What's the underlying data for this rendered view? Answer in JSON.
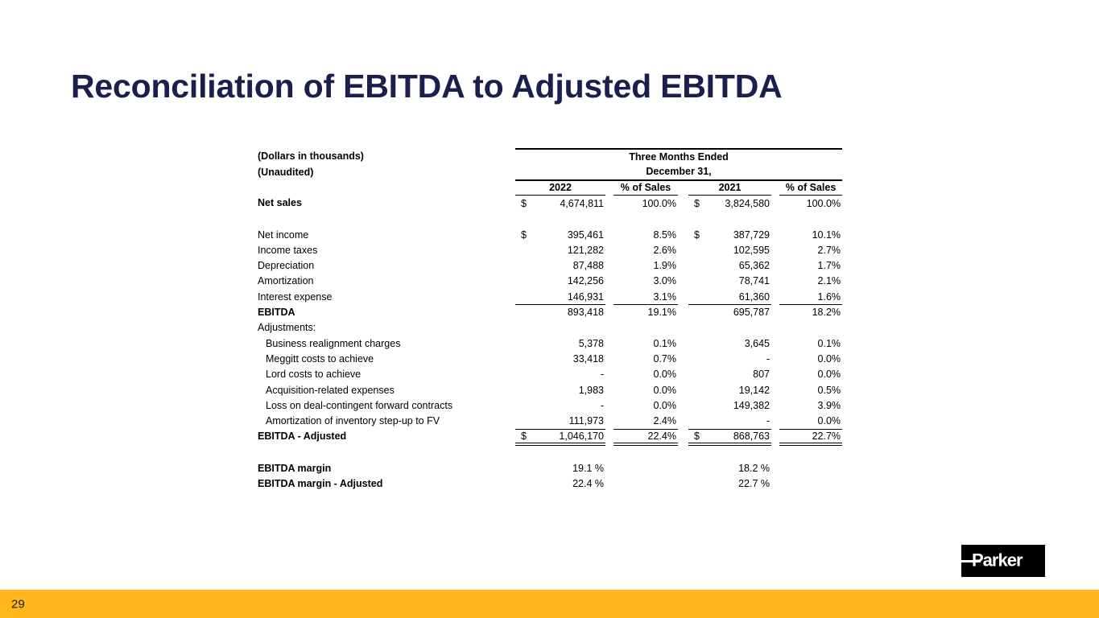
{
  "slide": {
    "title": "Reconciliation of EBITDA to Adjusted EBITDA"
  },
  "table": {
    "note_line1": "(Dollars in thousands)",
    "note_line2": "(Unaudited)",
    "period_line1": "Three Months Ended",
    "period_line2": "December 31,",
    "columns": [
      "2022",
      "% of Sales",
      "2021",
      "% of Sales"
    ],
    "rows": [
      {
        "label": "Net sales",
        "bold": true,
        "dollar": true,
        "v2022": "4,674,811",
        "pct2022": "100.0%",
        "v2021": "3,824,580",
        "pct2021": "100.0%"
      },
      {
        "label": "Net income",
        "dollar": true,
        "spacer_before": true,
        "v2022": "395,461",
        "pct2022": "8.5%",
        "v2021": "387,729",
        "pct2021": "10.1%"
      },
      {
        "label": "Income taxes",
        "v2022": "121,282",
        "pct2022": "2.6%",
        "v2021": "102,595",
        "pct2021": "2.7%"
      },
      {
        "label": "Depreciation",
        "v2022": "87,488",
        "pct2022": "1.9%",
        "v2021": "65,362",
        "pct2021": "1.7%"
      },
      {
        "label": "Amortization",
        "v2022": "142,256",
        "pct2022": "3.0%",
        "v2021": "78,741",
        "pct2021": "2.1%"
      },
      {
        "label": "Interest expense",
        "v2022": "146,931",
        "pct2022": "3.1%",
        "v2021": "61,360",
        "pct2021": "1.6%",
        "rule_below": "single"
      },
      {
        "label": "EBITDA",
        "bold": true,
        "v2022": "893,418",
        "pct2022": "19.1%",
        "v2021": "695,787",
        "pct2021": "18.2%"
      },
      {
        "label": "Adjustments:",
        "v2022": "",
        "pct2022": "",
        "v2021": "",
        "pct2021": ""
      },
      {
        "label": "Business realignment charges",
        "indent": true,
        "v2022": "5,378",
        "pct2022": "0.1%",
        "v2021": "3,645",
        "pct2021": "0.1%"
      },
      {
        "label": "Meggitt costs to achieve",
        "indent": true,
        "v2022": "33,418",
        "pct2022": "0.7%",
        "v2021": "-",
        "pct2021": "0.0%"
      },
      {
        "label": "Lord costs to achieve",
        "indent": true,
        "v2022": "-",
        "pct2022": "0.0%",
        "v2021": "807",
        "pct2021": "0.0%"
      },
      {
        "label": "Acquisition-related expenses",
        "indent": true,
        "v2022": "1,983",
        "pct2022": "0.0%",
        "v2021": "19,142",
        "pct2021": "0.5%"
      },
      {
        "label": "Loss on deal-contingent forward contracts",
        "indent": true,
        "v2022": "-",
        "pct2022": "0.0%",
        "v2021": "149,382",
        "pct2021": "3.9%"
      },
      {
        "label": "Amortization of inventory step-up to FV",
        "indent": true,
        "v2022": "111,973",
        "pct2022": "2.4%",
        "v2021": "-",
        "pct2021": "0.0%",
        "rule_below": "single"
      },
      {
        "label": "EBITDA - Adjusted",
        "bold": true,
        "dollar": true,
        "v2022": "1,046,170",
        "pct2022": "22.4%",
        "v2021": "868,763",
        "pct2021": "22.7%",
        "rule_below": "double"
      },
      {
        "label": "EBITDA margin",
        "bold": true,
        "spacer_before": true,
        "v2022": "19.1 %",
        "pct2022": "",
        "v2021": "18.2 %",
        "pct2021": ""
      },
      {
        "label": "EBITDA margin - Adjusted",
        "bold": true,
        "v2022": "22.4 %",
        "pct2022": "",
        "v2021": "22.7 %",
        "pct2021": ""
      }
    ]
  },
  "footer": {
    "page_number": "29",
    "logo_text": "Parker"
  },
  "colors": {
    "title_text": "#1a1f4e",
    "accent_bar": "#ffb71c",
    "table_text": "#000000",
    "logo_background": "#000000",
    "logo_text": "#ffffff"
  }
}
